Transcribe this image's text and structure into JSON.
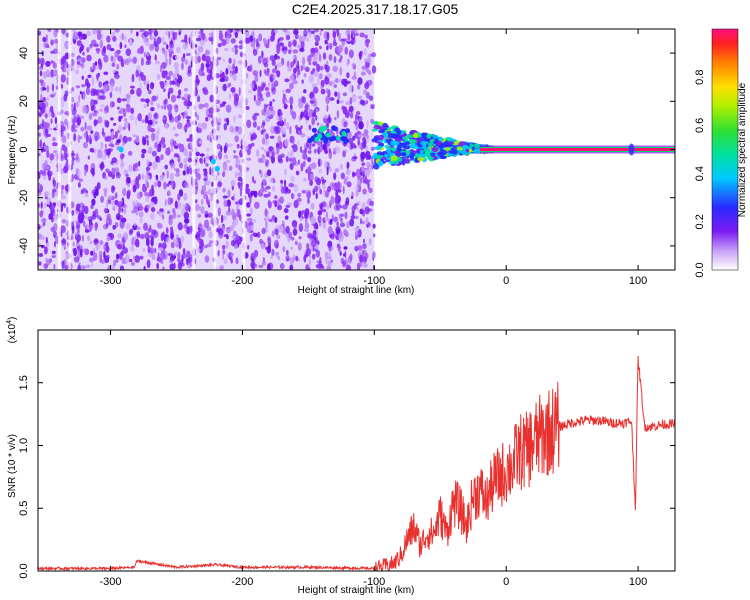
{
  "title": "C2E4.2025.317.18.17.G05",
  "colors": {
    "snr_line": "#e8312f",
    "spectrogram_base": "#7b1cf2",
    "background": "#ffffff"
  },
  "chart_data": [
    {
      "type": "heatmap",
      "xlabel": "Height of straight line (km)",
      "ylabel": "Frequency (Hz)",
      "xlim": [
        -355,
        128
      ],
      "ylim": [
        -50,
        50
      ],
      "xticks": [
        -300,
        -200,
        -100,
        0,
        100
      ],
      "yticks": [
        -40,
        -20,
        0,
        20,
        40
      ],
      "colorbar": {
        "label": "Normalized spectral amplitude",
        "range": [
          0,
          1
        ],
        "ticks": [
          "0.0",
          "0.2",
          "0.4",
          "0.6",
          "0.8"
        ],
        "colormap": "rainbow (violet to red)"
      },
      "features": {
        "noise_region_x": [
          -355,
          -100
        ],
        "ridge_frequency_hz": 0,
        "ridge_onset_x": -100,
        "ridge_saturated_x": [
          -20,
          128
        ],
        "isolated_patch_x": [
          -150,
          -120
        ],
        "isolated_patch_freq_hz": 6
      }
    },
    {
      "type": "line",
      "xlabel": "Height of straight line (km)",
      "ylabel": "SNR (10 * v/v)",
      "y_multiplier": "(x10",
      "y_multiplier_exp": "4",
      "y_multiplier_close": ")",
      "xlim": [
        -355,
        128
      ],
      "ylim": [
        0,
        1.92
      ],
      "xticks": [
        -300,
        -200,
        -100,
        0,
        100
      ],
      "yticks": [
        "0.0",
        "0.5",
        "1.0",
        "1.5"
      ],
      "series": [
        {
          "x": [
            -355,
            -300,
            -282,
            -280,
            -250,
            -220,
            -200,
            -150,
            -100,
            -85,
            -80,
            -75,
            -70,
            -65,
            -60,
            -55,
            -50,
            -45,
            -40,
            -35,
            -30,
            -25,
            -20,
            -15,
            -10,
            -5,
            0,
            5,
            10,
            15,
            20,
            30,
            40,
            50,
            60,
            70,
            80,
            90,
            95,
            98,
            100,
            105,
            110,
            120,
            128
          ],
          "y": [
            0.02,
            0.02,
            0.03,
            0.08,
            0.03,
            0.05,
            0.03,
            0.03,
            0.02,
            0.06,
            0.12,
            0.25,
            0.35,
            0.2,
            0.3,
            0.3,
            0.45,
            0.3,
            0.55,
            0.5,
            0.35,
            0.6,
            0.65,
            0.55,
            0.7,
            0.75,
            0.8,
            0.85,
            0.95,
            0.95,
            1.02,
            1.1,
            1.15,
            1.18,
            1.2,
            1.2,
            1.18,
            1.18,
            1.2,
            0.5,
            1.7,
            1.15,
            1.15,
            1.17,
            1.17
          ]
        }
      ]
    }
  ]
}
